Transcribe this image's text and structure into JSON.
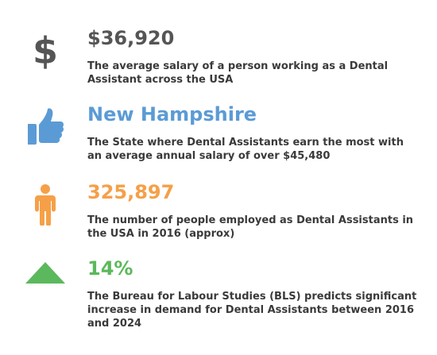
{
  "stats": [
    {
      "icon": "dollar-icon",
      "color": "#555555",
      "headline": "$36,920",
      "description": "The average salary of a person working as a Dental Assistant across the USA"
    },
    {
      "icon": "thumbs-up-icon",
      "color": "#5b9bd5",
      "headline": "New Hampshire",
      "description": "The State where Dental Assistants earn the most with an average annual salary of over $45,480"
    },
    {
      "icon": "person-icon",
      "color": "#f5a048",
      "headline": "325,897",
      "description": "The number of people employed as Dental Assistants in the USA in 2016 (approx)"
    },
    {
      "icon": "triangle-up-icon",
      "color": "#5cb85c",
      "headline": "14%",
      "description": "The Bureau for Labour Studies (BLS) predicts significant increase in demand for Dental Assistants between 2016 and 2024"
    }
  ]
}
